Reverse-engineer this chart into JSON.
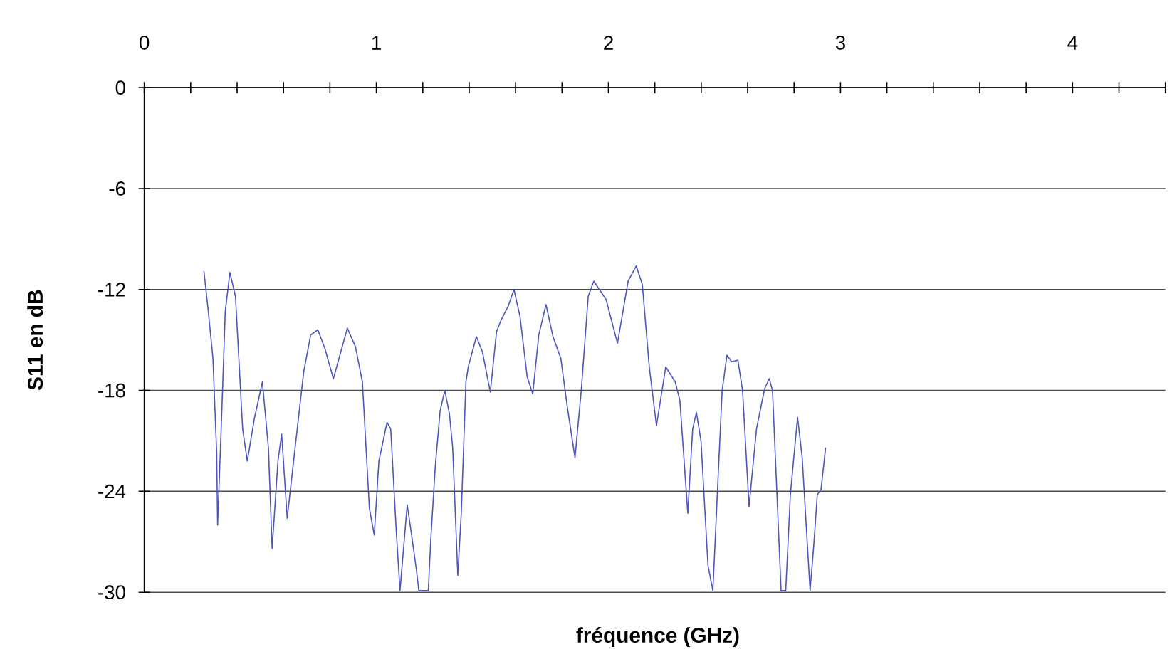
{
  "chart_data": {
    "type": "line",
    "xlabel": "fréquence (GHz)",
    "ylabel": "S11 en dB",
    "x": [
      0.257,
      0.276,
      0.296,
      0.312,
      0.316,
      0.333,
      0.349,
      0.369,
      0.393,
      0.424,
      0.444,
      0.474,
      0.509,
      0.535,
      0.551,
      0.576,
      0.592,
      0.616,
      0.65,
      0.687,
      0.717,
      0.748,
      0.778,
      0.815,
      0.839,
      0.875,
      0.91,
      0.94,
      0.97,
      0.991,
      1.011,
      1.046,
      1.062,
      1.086,
      1.102,
      1.133,
      1.153,
      1.173,
      1.183,
      1.224,
      1.234,
      1.254,
      1.275,
      1.295,
      1.315,
      1.329,
      1.351,
      1.366,
      1.386,
      1.396,
      1.431,
      1.457,
      1.491,
      1.518,
      1.538,
      1.568,
      1.593,
      1.619,
      1.65,
      1.674,
      1.7,
      1.731,
      1.761,
      1.795,
      1.822,
      1.856,
      1.883,
      1.913,
      1.937,
      1.99,
      2.039,
      2.085,
      2.12,
      2.146,
      2.176,
      2.207,
      2.247,
      2.288,
      2.308,
      2.342,
      2.363,
      2.379,
      2.399,
      2.429,
      2.45,
      2.49,
      2.511,
      2.531,
      2.558,
      2.578,
      2.606,
      2.638,
      2.673,
      2.693,
      2.707,
      2.744,
      2.764,
      2.784,
      2.815,
      2.835,
      2.869,
      2.886,
      2.9,
      2.916,
      2.936
    ],
    "values": [
      -10.9,
      -13.3,
      -16.1,
      -21.7,
      -26.0,
      -19.7,
      -13.3,
      -11.0,
      -12.4,
      -20.3,
      -22.2,
      -19.7,
      -17.5,
      -21.4,
      -27.4,
      -22.2,
      -20.6,
      -25.6,
      -21.4,
      -16.9,
      -14.7,
      -14.4,
      -15.5,
      -17.3,
      -16.1,
      -14.3,
      -15.4,
      -17.5,
      -25.0,
      -26.6,
      -22.2,
      -19.9,
      -20.3,
      -26.4,
      -29.9,
      -24.8,
      -26.7,
      -28.7,
      -29.9,
      -29.9,
      -27.0,
      -22.5,
      -19.2,
      -18.0,
      -19.4,
      -21.4,
      -29.0,
      -25.3,
      -17.5,
      -16.6,
      -14.8,
      -15.7,
      -18.1,
      -14.5,
      -13.8,
      -13.0,
      -12.0,
      -13.6,
      -17.2,
      -18.2,
      -14.7,
      -12.9,
      -14.8,
      -16.1,
      -18.9,
      -22.0,
      -18.0,
      -12.4,
      -11.5,
      -12.6,
      -15.2,
      -11.5,
      -10.6,
      -11.7,
      -16.6,
      -20.1,
      -16.6,
      -17.5,
      -18.6,
      -25.3,
      -20.3,
      -19.3,
      -21.0,
      -28.4,
      -29.9,
      -18.0,
      -15.9,
      -16.3,
      -16.2,
      -18.0,
      -24.9,
      -20.3,
      -17.9,
      -17.3,
      -18.0,
      -29.9,
      -29.9,
      -24.2,
      -19.6,
      -22.0,
      -29.9,
      -27.0,
      -24.2,
      -23.9,
      -21.4
    ],
    "color": "#4f55bd",
    "line_style": "solid",
    "grid": "y",
    "xlim": [
      0,
      4.4
    ],
    "ylim": [
      -30,
      0
    ],
    "xticks": [
      0,
      {
        "value": 0.2,
        "label": null
      },
      {
        "value": 0.4,
        "label": null
      },
      {
        "value": 0.6,
        "label": null
      },
      {
        "value": 0.8,
        "label": null
      },
      1,
      {
        "value": 1.2,
        "label": null
      },
      {
        "value": 1.4,
        "label": null
      },
      {
        "value": 1.6,
        "label": null
      },
      {
        "value": 1.8,
        "label": null
      },
      2,
      {
        "value": 2.2,
        "label": null
      },
      {
        "value": 2.4,
        "label": null
      },
      {
        "value": 2.6,
        "label": null
      },
      {
        "value": 2.8,
        "label": null
      },
      3,
      {
        "value": 3.2,
        "label": null
      },
      {
        "value": 3.4,
        "label": null
      },
      {
        "value": 3.6,
        "label": null
      },
      {
        "value": 3.8,
        "label": null
      },
      4,
      {
        "value": 4.2,
        "label": null
      },
      {
        "value": 4.4,
        "label": null
      }
    ],
    "yticks": [
      0,
      -6,
      -12,
      -18,
      -24,
      -30
    ]
  }
}
